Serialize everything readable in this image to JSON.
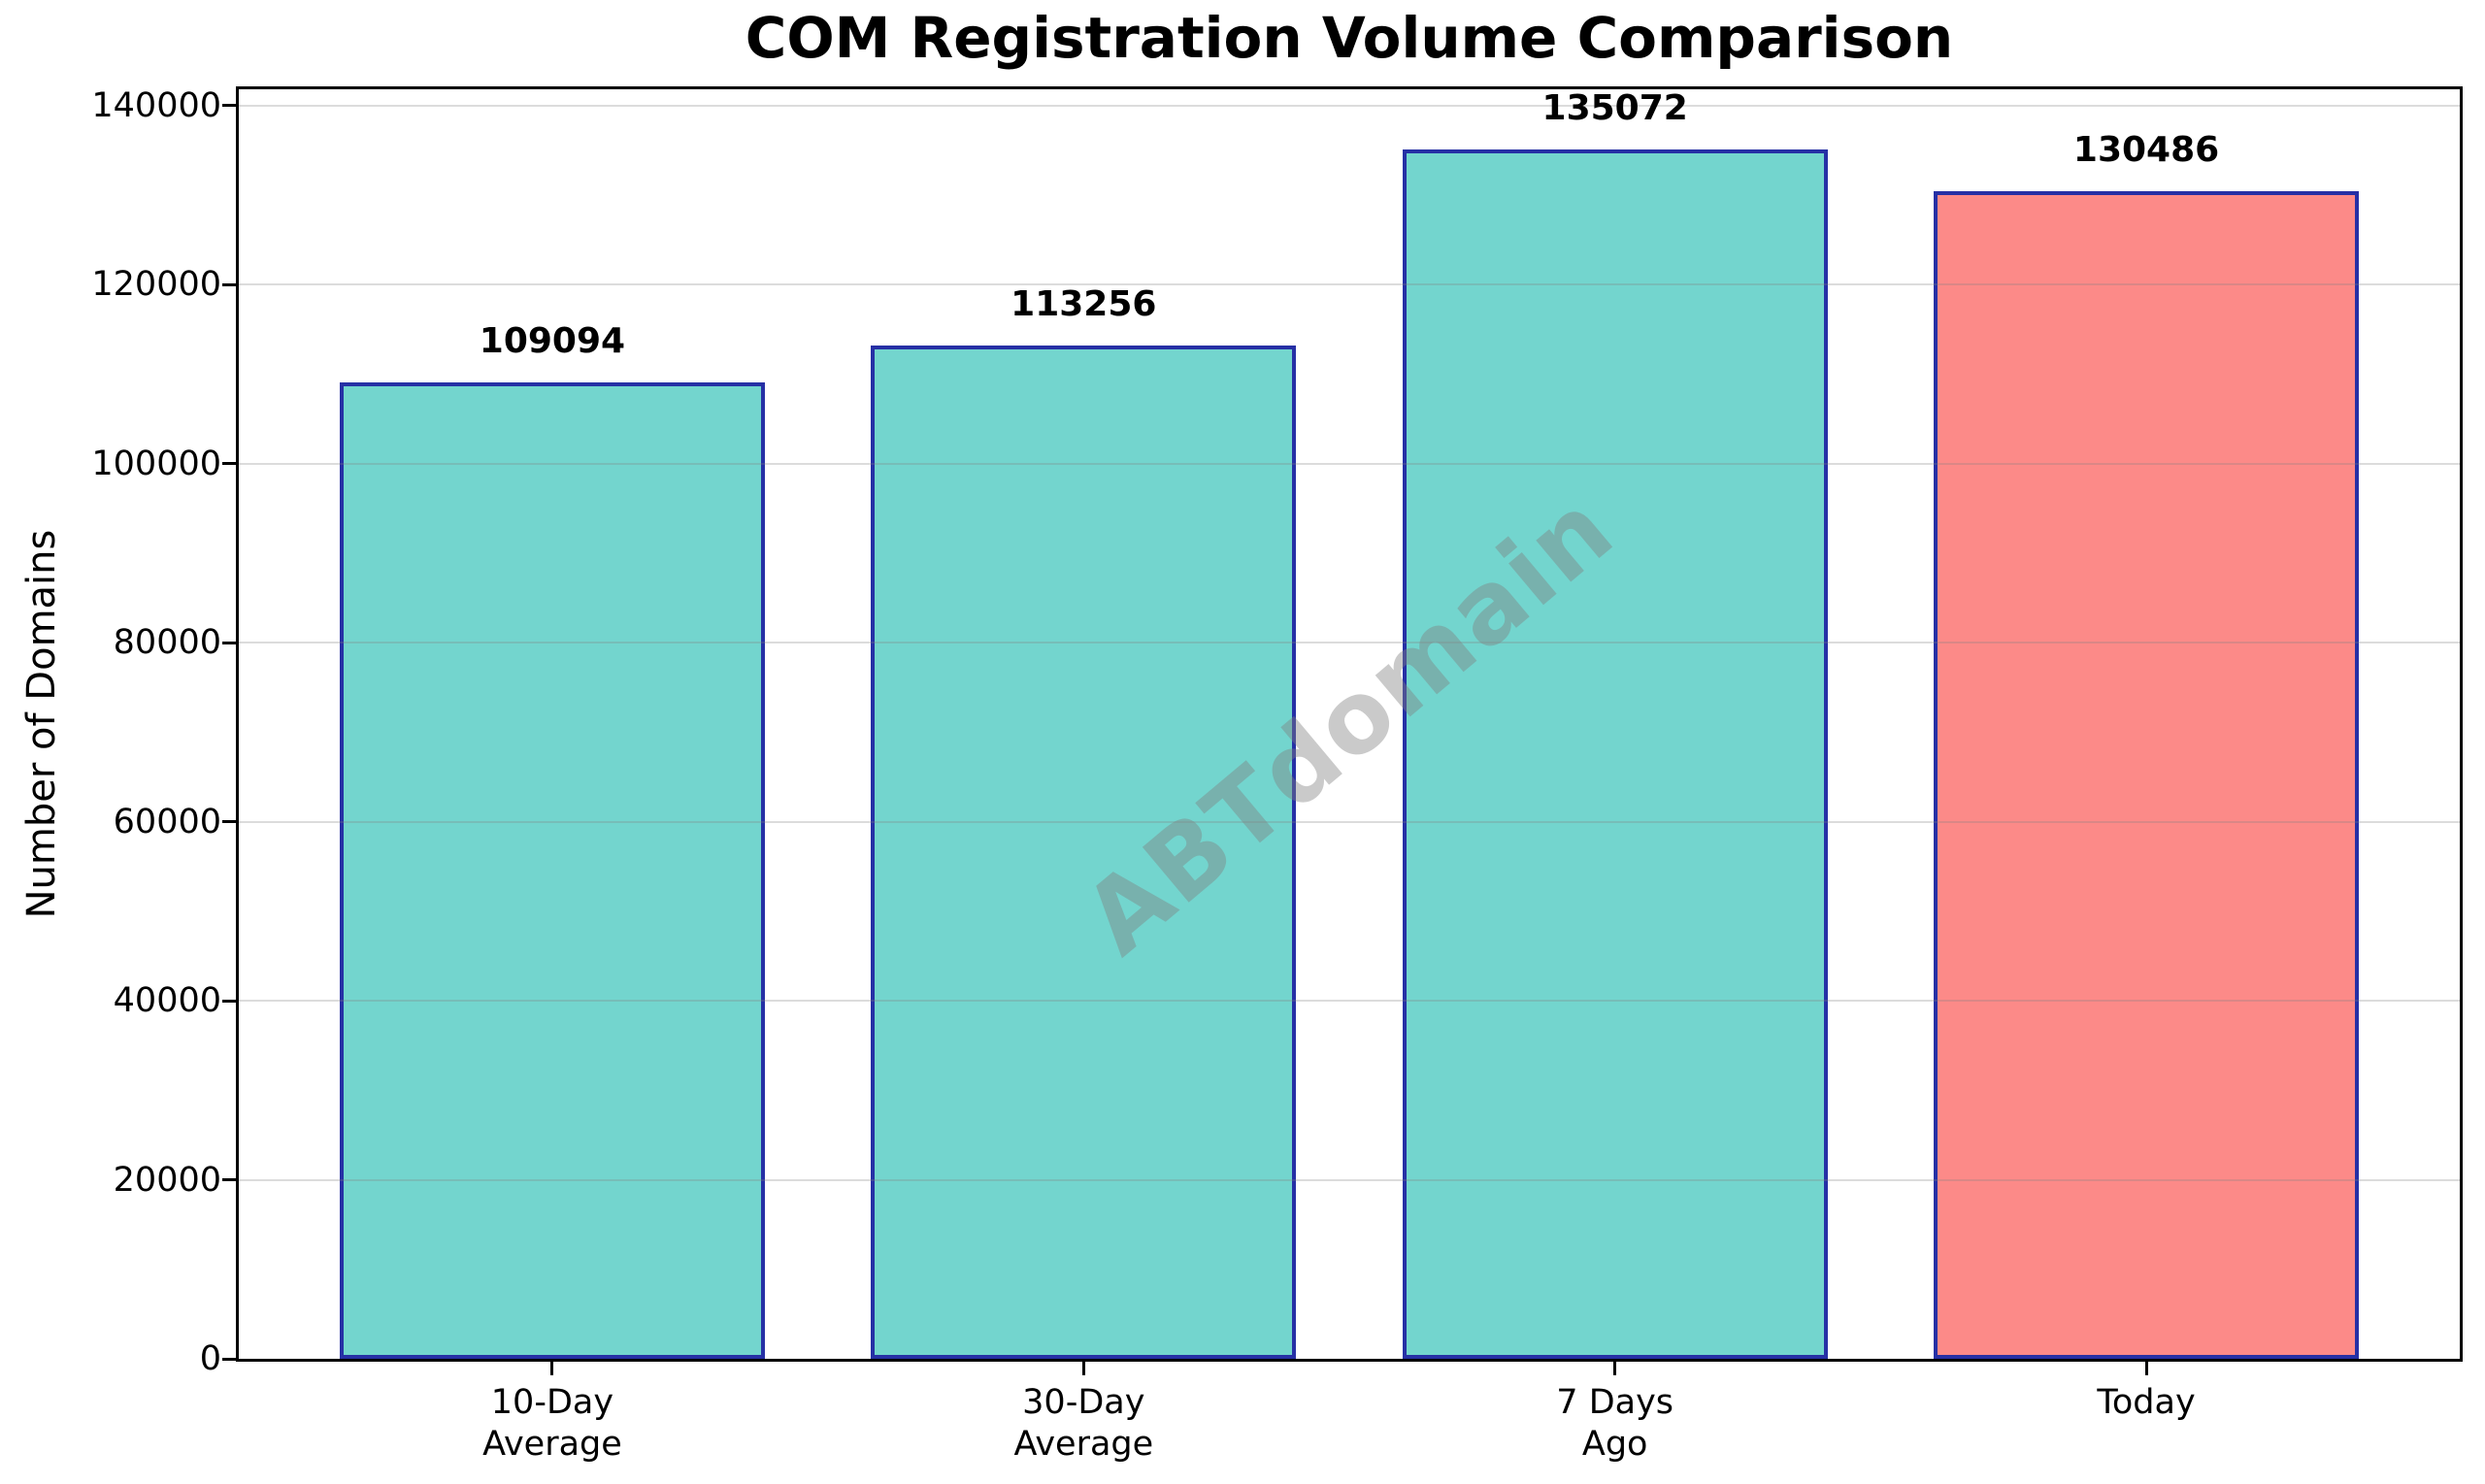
{
  "chart_data": {
    "type": "bar",
    "title": "COM Registration Volume Comparison",
    "xlabel": "",
    "ylabel": "Number of Domains",
    "categories": [
      "10-Day\nAverage",
      "30-Day\nAverage",
      "7 Days\nAgo",
      "Today"
    ],
    "values": [
      109094,
      113256,
      135072,
      130486
    ],
    "value_labels": [
      "109094",
      "113256",
      "135072",
      "130486"
    ],
    "bar_colors": [
      "#73d5ce",
      "#73d5ce",
      "#73d5ce",
      "#fc8a88"
    ],
    "bar_edge_color": "#2630a5",
    "bar_width": 0.8,
    "xlim": [
      -0.59,
      3.59
    ],
    "ylim": [
      0,
      141826
    ],
    "yticks": [
      0,
      20000,
      40000,
      60000,
      80000,
      100000,
      120000,
      140000
    ],
    "ytick_labels": [
      "0",
      "20000",
      "40000",
      "60000",
      "80000",
      "100000",
      "120000",
      "140000"
    ],
    "grid": true,
    "grid_color": "rgba(128,128,128,0.28)",
    "legend_position": "none",
    "watermark": "ABTdomain",
    "watermark_color": "rgba(128,128,128,0.42)",
    "teal_color": "#73d5ce",
    "highlight_color": "#fc8a88"
  }
}
